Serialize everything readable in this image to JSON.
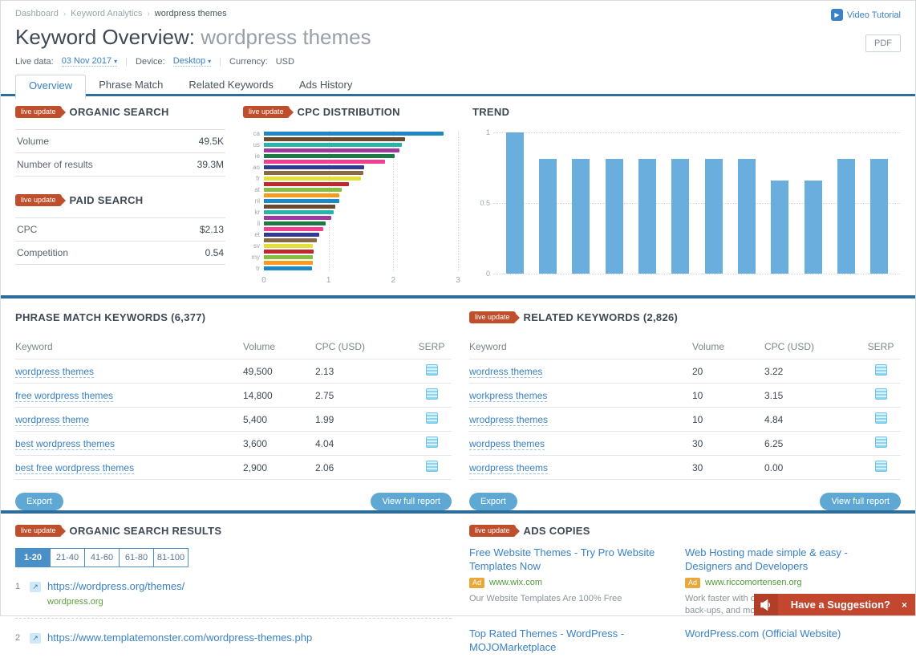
{
  "header": {
    "breadcrumb": [
      "Dashboard",
      "Keyword Analytics",
      "wordpress themes"
    ],
    "video_tutorial_label": "Video Tutorial",
    "title_prefix": "Keyword Overview: ",
    "title_keyword": "wordpress themes",
    "pdf_label": "PDF",
    "filters": {
      "live_data_label": "Live data:",
      "live_data_value": "03 Nov 2017",
      "device_label": "Device:",
      "device_value": "Desktop",
      "currency_label": "Currency:",
      "currency_value": "USD"
    },
    "tabs": [
      {
        "label": "Overview",
        "active": true
      },
      {
        "label": "Phrase Match",
        "active": false
      },
      {
        "label": "Related Keywords",
        "active": false
      },
      {
        "label": "Ads History",
        "active": false
      }
    ]
  },
  "live_badge_label": "live update",
  "organic_search": {
    "title": "ORGANIC SEARCH",
    "rows": [
      {
        "label": "Volume",
        "value": "49.5K"
      },
      {
        "label": "Number of results",
        "value": "39.3M"
      }
    ]
  },
  "paid_search": {
    "title": "PAID SEARCH",
    "rows": [
      {
        "label": "CPC",
        "value": "$2.13"
      },
      {
        "label": "Competition",
        "value": "0.54"
      }
    ]
  },
  "chart_data": [
    {
      "type": "bar",
      "orientation": "horizontal",
      "title": "CPC DISTRIBUTION",
      "categories": [
        "ca",
        "",
        "us",
        "",
        "ie",
        "",
        "ao",
        "",
        "fr",
        "",
        "at",
        "",
        "nl",
        "",
        "kr",
        "",
        "il",
        "",
        "et",
        "",
        "sv",
        "",
        "my",
        "",
        "tr"
      ],
      "values": [
        2.78,
        2.18,
        2.13,
        2.1,
        2.02,
        1.87,
        1.55,
        1.54,
        1.5,
        1.32,
        1.2,
        1.17,
        1.16,
        1.1,
        1.08,
        1.04,
        0.95,
        0.92,
        0.86,
        0.82,
        0.76,
        0.77,
        0.76,
        0.75,
        0.74
      ],
      "color_cycle": [
        "#1e88c5",
        "#6b4a2e",
        "#29b3a9",
        "#9e3a9e",
        "#1e7a45",
        "#f23f90",
        "#343a94",
        "#8a6a45",
        "#e3e039",
        "#c0272f",
        "#86bf40",
        "#f59a23"
      ],
      "xlim": [
        0,
        3
      ],
      "xticks": [
        0,
        1,
        2,
        3
      ],
      "grid": true
    },
    {
      "type": "bar",
      "orientation": "vertical",
      "title": "TREND",
      "values": [
        1,
        0.81,
        0.81,
        0.81,
        0.81,
        0.81,
        0.81,
        0.81,
        0.66,
        0.66,
        0.81,
        0.81
      ],
      "bar_color": "#6aaede",
      "ylim": [
        0,
        1
      ],
      "yticks": [
        0,
        0.5,
        1
      ],
      "grid": true
    }
  ],
  "phrase_match": {
    "title": "PHRASE MATCH KEYWORDS (6,377)",
    "columns": [
      "Keyword",
      "Volume",
      "CPC (USD)",
      "SERP"
    ],
    "rows": [
      {
        "keyword": "wordpress themes",
        "volume": "49,500",
        "cpc": "2.13"
      },
      {
        "keyword": "free wordpress themes",
        "volume": "14,800",
        "cpc": "2.75"
      },
      {
        "keyword": "wordpress theme",
        "volume": "5,400",
        "cpc": "1.99"
      },
      {
        "keyword": "best wordpress themes",
        "volume": "3,600",
        "cpc": "4.04"
      },
      {
        "keyword": "best free wordpress themes",
        "volume": "2,900",
        "cpc": "2.06"
      }
    ],
    "export_label": "Export",
    "view_report_label": "View full report"
  },
  "related_keywords": {
    "title": "RELATED KEYWORDS (2,826)",
    "columns": [
      "Keyword",
      "Volume",
      "CPC (USD)",
      "SERP"
    ],
    "rows": [
      {
        "keyword": "wordress themes",
        "volume": "20",
        "cpc": "3.22"
      },
      {
        "keyword": "workpress themes",
        "volume": "10",
        "cpc": "3.15"
      },
      {
        "keyword": "wrodpress themes",
        "volume": "10",
        "cpc": "4.84"
      },
      {
        "keyword": "wordpess themes",
        "volume": "30",
        "cpc": "6.25"
      },
      {
        "keyword": "wordpress theems",
        "volume": "30",
        "cpc": "0.00"
      }
    ],
    "export_label": "Export",
    "view_report_label": "View full report"
  },
  "organic_results": {
    "title": "ORGANIC SEARCH RESULTS",
    "pagination": [
      "1-20",
      "21-40",
      "41-60",
      "61-80",
      "81-100"
    ],
    "active_page": "1-20",
    "results": [
      {
        "rank": "1",
        "url": "https://wordpress.org/themes/",
        "domain": "wordpress.org"
      },
      {
        "rank": "2",
        "url": "https://www.templatemonster.com/wordpress-themes.php",
        "domain": ""
      }
    ]
  },
  "ads_copies": {
    "title": "ADS COPIES",
    "ads": [
      {
        "title": "Free Website Themes - Try Pro Website Templates Now",
        "badge": "Ad",
        "url": "www.wix.com",
        "desc": "Our Website Templates Are 100% Free"
      },
      {
        "title": "Web Hosting made simple & easy - Designers and Developers",
        "badge": "Ad",
        "url": "www.riccomortensen.org",
        "desc": "Work faster with one click staging, automatic back-ups, and more."
      },
      {
        "title": "Top Rated Themes - WordPress - MOJOMarketplace",
        "badge": "",
        "url": "",
        "desc": ""
      },
      {
        "title": "WordPress.com (Official Website)",
        "badge": "",
        "url": "",
        "desc": ""
      }
    ]
  },
  "suggestion_banner": {
    "text": "Have a Suggestion?",
    "close": "×"
  },
  "colors": {
    "accent_blue": "#3a82c4",
    "divider_blue": "#2d6d99",
    "live_badge_red": "#bf4e2c",
    "green_url": "#4f9b35",
    "banner_red": "#c2472e"
  }
}
